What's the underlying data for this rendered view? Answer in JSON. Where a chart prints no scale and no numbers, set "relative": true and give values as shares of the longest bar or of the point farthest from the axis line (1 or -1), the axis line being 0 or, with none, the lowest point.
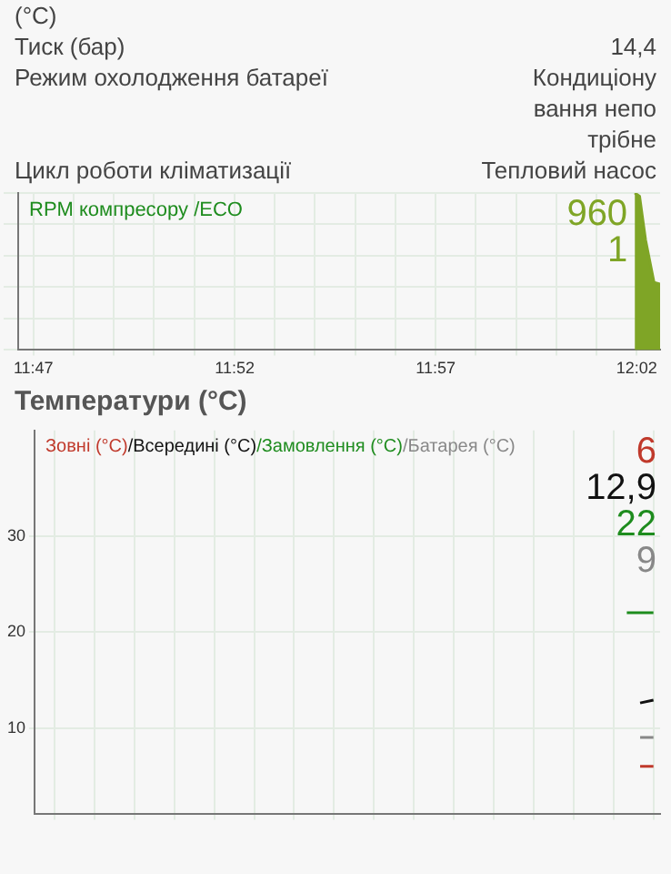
{
  "chart_data": [
    {
      "type": "other",
      "title": "(°C)",
      "annotations": [
        "Тиск (бар)",
        "14,4",
        "Режим охолодження батареї",
        "Кондиціонування непотрібне",
        "Цикл роботи кліматизації",
        "Тепловий насос"
      ]
    },
    {
      "type": "area",
      "title": "RPM компресору /ECO",
      "annotations": [
        "960",
        "1"
      ],
      "relative": true,
      "series": [
        {
          "color": "#7fa526",
          "x": [
            12.0325,
            12.0345,
            12.037,
            12.0405,
            12.043
          ],
          "values": [
            1,
            0.98,
            0.7,
            0.43,
            0.42
          ]
        }
      ],
      "xlim": [
        11.777,
        12.043
      ],
      "xticks": [
        {
          "value": 11.7833,
          "label": "11:47"
        },
        {
          "value": 11.8,
          "label": null
        },
        {
          "value": 11.8167,
          "label": null
        },
        {
          "value": 11.8333,
          "label": null
        },
        {
          "value": 11.85,
          "label": null
        },
        {
          "value": 11.8667,
          "label": "11:52"
        },
        {
          "value": 11.8833,
          "label": null
        },
        {
          "value": 11.9,
          "label": null
        },
        {
          "value": 11.9167,
          "label": null
        },
        {
          "value": 11.9333,
          "label": null
        },
        {
          "value": 11.95,
          "label": "11:57"
        },
        {
          "value": 11.9667,
          "label": null
        },
        {
          "value": 11.9833,
          "label": null
        },
        {
          "value": 12.0,
          "label": null
        },
        {
          "value": 12.0167,
          "label": null
        },
        {
          "value": 12.0333,
          "label": "12:02"
        }
      ],
      "grid": true,
      "marker": "none"
    },
    {
      "type": "line",
      "title": "Температури (°C)",
      "annotations": [
        "6",
        "12,9",
        "22",
        "9"
      ],
      "categories": [
        null,
        null,
        null,
        null,
        null,
        null,
        null,
        null,
        null,
        null,
        null,
        null,
        null,
        null,
        null,
        null,
        null,
        null,
        null,
        null,
        null,
        null,
        null,
        null,
        null,
        null,
        null,
        null,
        null,
        null,
        null,
        null,
        null,
        null,
        null,
        null,
        null,
        null,
        null,
        null,
        null,
        null,
        null,
        null,
        null,
        null,
        null
      ],
      "series": [
        {
          "name": "Зовні (°C)",
          "color": "#c0392b",
          "values": [
            null,
            null,
            null,
            null,
            null,
            null,
            null,
            null,
            null,
            null,
            null,
            null,
            null,
            null,
            null,
            null,
            null,
            null,
            null,
            null,
            null,
            null,
            null,
            null,
            null,
            null,
            null,
            null,
            null,
            null,
            null,
            null,
            null,
            null,
            null,
            null,
            null,
            null,
            null,
            null,
            null,
            null,
            null,
            null,
            null,
            6,
            6
          ]
        },
        {
          "name": "/Всередині (°C)",
          "color": "#111111",
          "values": [
            null,
            null,
            null,
            null,
            null,
            null,
            null,
            null,
            null,
            null,
            null,
            null,
            null,
            null,
            null,
            null,
            null,
            null,
            null,
            null,
            null,
            null,
            null,
            null,
            null,
            null,
            null,
            null,
            null,
            null,
            null,
            null,
            null,
            null,
            null,
            null,
            null,
            null,
            null,
            null,
            null,
            null,
            null,
            null,
            null,
            12.6,
            12.9
          ]
        },
        {
          "name": "/Замовлення (°C)",
          "color": "#1e8c1e",
          "values": [
            null,
            null,
            null,
            null,
            null,
            null,
            null,
            null,
            null,
            null,
            null,
            null,
            null,
            null,
            null,
            null,
            null,
            null,
            null,
            null,
            null,
            null,
            null,
            null,
            null,
            null,
            null,
            null,
            null,
            null,
            null,
            null,
            null,
            null,
            null,
            null,
            null,
            null,
            null,
            null,
            null,
            null,
            null,
            null,
            22,
            22,
            22
          ]
        },
        {
          "name": "/Батарея (°C)",
          "color": "#888888",
          "values": [
            null,
            null,
            null,
            null,
            null,
            null,
            null,
            null,
            null,
            null,
            null,
            null,
            null,
            null,
            null,
            null,
            null,
            null,
            null,
            null,
            null,
            null,
            null,
            null,
            null,
            null,
            null,
            null,
            null,
            null,
            null,
            null,
            null,
            null,
            null,
            null,
            null,
            null,
            null,
            null,
            null,
            null,
            null,
            null,
            null,
            9,
            9
          ]
        }
      ],
      "ylim": [
        1,
        41
      ],
      "yticks": [
        10,
        20,
        30
      ],
      "grid": true,
      "marker": "none"
    }
  ]
}
